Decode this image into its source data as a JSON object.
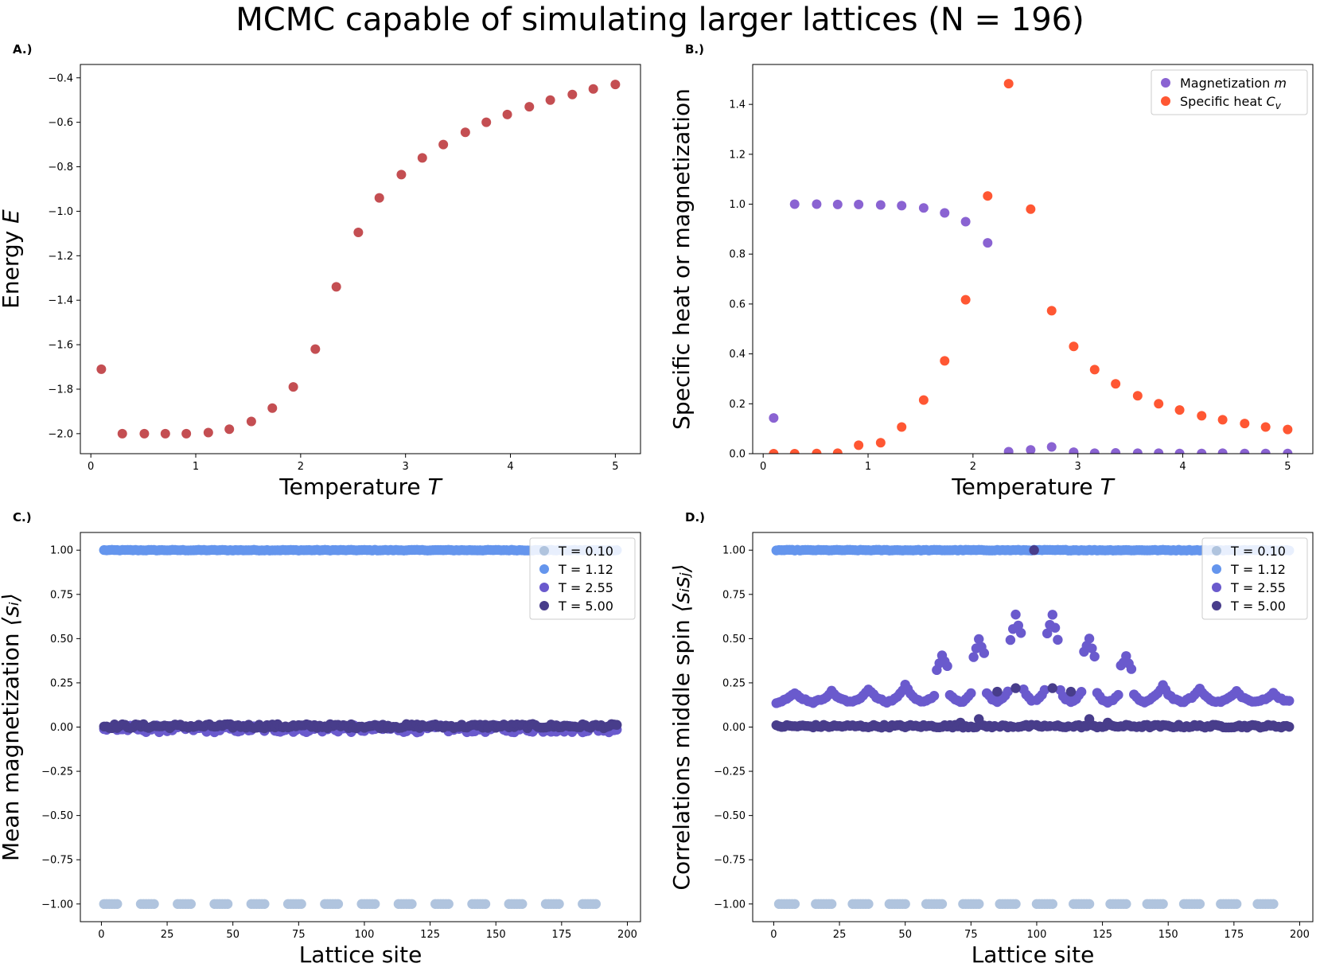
{
  "figure": {
    "title": "MCMC capable of simulating larger lattices (N = 196)"
  },
  "colors": {
    "energy": "#c44e52",
    "magnetization": "#8a63d2",
    "specific_heat": "#ff5733",
    "t010": "#b0c4de",
    "t112": "#6495ed",
    "t255": "#6a5acd",
    "t500": "#483d8b"
  },
  "chart_data": [
    {
      "id": "A",
      "panel_label": "A.)",
      "type": "scatter",
      "xlabel": "Temperature",
      "xlabel_var": "T",
      "ylabel": "Energy",
      "ylabel_var": "E",
      "xlim": [
        -0.1,
        5.24
      ],
      "ylim": [
        -2.09,
        -0.34
      ],
      "xticks": [
        0,
        1,
        2,
        3,
        4,
        5
      ],
      "xtick_labels": [
        "0",
        "1",
        "2",
        "3",
        "4",
        "5"
      ],
      "yticks": [
        -2.0,
        -1.8,
        -1.6,
        -1.4,
        -1.2,
        -1.0,
        -0.8,
        -0.6,
        -0.4
      ],
      "ytick_labels": [
        "−2.0",
        "−1.8",
        "−1.6",
        "−1.4",
        "−1.2",
        "−1.0",
        "−0.8",
        "−0.6",
        "−0.4"
      ],
      "grid": false,
      "series": [
        {
          "color": "#c44e52",
          "x": [
            0.1,
            0.3,
            0.51,
            0.71,
            0.91,
            1.12,
            1.32,
            1.53,
            1.73,
            1.93,
            2.14,
            2.34,
            2.55,
            2.75,
            2.96,
            3.16,
            3.36,
            3.57,
            3.77,
            3.97,
            4.18,
            4.38,
            4.59,
            4.79,
            5.0
          ],
          "y": [
            -1.71,
            -2.0,
            -2.0,
            -2.0,
            -2.0,
            -1.995,
            -1.98,
            -1.945,
            -1.885,
            -1.79,
            -1.62,
            -1.34,
            -1.095,
            -0.94,
            -0.835,
            -0.76,
            -0.7,
            -0.645,
            -0.6,
            -0.565,
            -0.53,
            -0.5,
            -0.475,
            -0.45,
            -0.43
          ]
        }
      ]
    },
    {
      "id": "B",
      "panel_label": "B.)",
      "type": "scatter",
      "xlabel": "Temperature",
      "xlabel_var": "T",
      "ylabel": "Specific heat or magnetization",
      "xlim": [
        -0.1,
        5.24
      ],
      "ylim": [
        0,
        1.56
      ],
      "xticks": [
        0,
        1,
        2,
        3,
        4,
        5
      ],
      "xtick_labels": [
        "0",
        "1",
        "2",
        "3",
        "4",
        "5"
      ],
      "yticks": [
        0.0,
        0.2,
        0.4,
        0.6,
        0.8,
        1.0,
        1.2,
        1.4
      ],
      "ytick_labels": [
        "0.0",
        "0.2",
        "0.4",
        "0.6",
        "0.8",
        "1.0",
        "1.2",
        "1.4"
      ],
      "grid": false,
      "legend_position": "upper-right",
      "series": [
        {
          "name": "Magnetization",
          "name_var": "m",
          "color": "#8a63d2",
          "x": [
            0.1,
            0.3,
            0.51,
            0.71,
            0.91,
            1.12,
            1.32,
            1.53,
            1.73,
            1.93,
            2.14,
            2.34,
            2.55,
            2.75,
            2.96,
            3.16,
            3.36,
            3.57,
            3.77,
            3.97,
            4.18,
            4.38,
            4.59,
            4.79,
            5.0
          ],
          "y": [
            0.143,
            1.0,
            1.0,
            0.999,
            0.999,
            0.997,
            0.994,
            0.985,
            0.965,
            0.93,
            0.845,
            0.008,
            0.015,
            0.027,
            0.006,
            0.002,
            0.003,
            0.002,
            0.002,
            0.001,
            0.001,
            0.002,
            0.001,
            0.001,
            0.001
          ]
        },
        {
          "name": "Specific heat",
          "name_var": "C",
          "name_sub": "v",
          "color": "#ff5733",
          "x": [
            0.1,
            0.3,
            0.51,
            0.71,
            0.91,
            1.12,
            1.32,
            1.53,
            1.73,
            1.93,
            2.14,
            2.34,
            2.55,
            2.75,
            2.96,
            3.16,
            3.36,
            3.57,
            3.77,
            3.97,
            4.18,
            4.38,
            4.59,
            4.79,
            5.0
          ],
          "y": [
            0.0,
            0.0,
            0.001,
            0.002,
            0.034,
            0.044,
            0.107,
            0.215,
            0.372,
            0.617,
            1.033,
            1.483,
            0.98,
            0.573,
            0.43,
            0.337,
            0.28,
            0.232,
            0.2,
            0.175,
            0.152,
            0.136,
            0.121,
            0.107,
            0.097
          ]
        }
      ]
    },
    {
      "id": "C",
      "panel_label": "C.)",
      "type": "scatter",
      "xlabel": "Lattice site",
      "ylabel": "Mean magnetization",
      "ylabel_math": "⟨sᵢ⟩",
      "xlim": [
        -8,
        205
      ],
      "ylim": [
        -1.1,
        1.1
      ],
      "xticks": [
        0,
        25,
        50,
        75,
        100,
        125,
        150,
        175,
        200
      ],
      "xtick_labels": [
        "0",
        "25",
        "50",
        "75",
        "100",
        "125",
        "150",
        "175",
        "200"
      ],
      "yticks": [
        -1.0,
        -0.75,
        -0.5,
        -0.25,
        0.0,
        0.25,
        0.5,
        0.75,
        1.0
      ],
      "ytick_labels": [
        "−1.00",
        "−0.75",
        "−0.50",
        "−0.25",
        "0.00",
        "0.25",
        "0.50",
        "0.75",
        "1.00"
      ],
      "grid": false,
      "legend_position": "upper-right",
      "n_sites": 196,
      "series": [
        {
          "name": "T = 0.10",
          "color": "#b0c4de",
          "pattern": "domains",
          "values_level": -1.0,
          "domain_width": 14,
          "domain_gap_start": 1,
          "domain_gap_end": 7,
          "alt_value": 1.0
        },
        {
          "name": "T = 1.12",
          "color": "#6495ed",
          "pattern": "constant",
          "values_level": 1.0,
          "noise": 0.002
        },
        {
          "name": "T = 2.55",
          "color": "#6a5acd",
          "pattern": "noise",
          "values_level": -0.01,
          "noise": 0.02
        },
        {
          "name": "T = 5.00",
          "color": "#483d8b",
          "pattern": "noise",
          "values_level": 0.005,
          "noise": 0.012
        }
      ]
    },
    {
      "id": "D",
      "panel_label": "D.)",
      "type": "scatter",
      "xlabel": "Lattice site",
      "ylabel": "Correlations middle spin",
      "ylabel_math": "⟨sᵢsⱼ⟩",
      "xlim": [
        -8,
        205
      ],
      "ylim": [
        -1.1,
        1.1
      ],
      "xticks": [
        0,
        25,
        50,
        75,
        100,
        125,
        150,
        175,
        200
      ],
      "xtick_labels": [
        "0",
        "25",
        "50",
        "75",
        "100",
        "125",
        "150",
        "175",
        "200"
      ],
      "yticks": [
        -1.0,
        -0.75,
        -0.5,
        -0.25,
        0.0,
        0.25,
        0.5,
        0.75,
        1.0
      ],
      "ytick_labels": [
        "−1.00",
        "−0.75",
        "−0.50",
        "−0.25",
        "0.00",
        "0.25",
        "0.50",
        "0.75",
        "1.00"
      ],
      "grid": false,
      "legend_position": "upper-right",
      "n_sites": 196,
      "series": [
        {
          "name": "T = 0.10",
          "color": "#b0c4de",
          "pattern": "domains",
          "values_level": -1.0,
          "domain_width": 14,
          "domain_gap_start": 2,
          "domain_gap_end": 9,
          "alt_value": 1.0
        },
        {
          "name": "T = 1.12",
          "color": "#6495ed",
          "pattern": "constant",
          "values_level": 1.0,
          "noise": 0.002
        },
        {
          "name": "T = 2.55",
          "color": "#6a5acd",
          "pattern": "correlation",
          "baseline": 0.14,
          "peak_center": 99,
          "peak_value": 0.55,
          "bump_period": 14,
          "bump_amp": 0.05
        },
        {
          "name": "T = 5.00",
          "color": "#483d8b",
          "pattern": "correlation_small",
          "baseline": 0.005,
          "peak_center": 99,
          "peak_value": 1.0,
          "near_peaks": [
            0.22,
            0.2,
            0.09,
            0.05,
            0.03
          ]
        }
      ]
    }
  ]
}
